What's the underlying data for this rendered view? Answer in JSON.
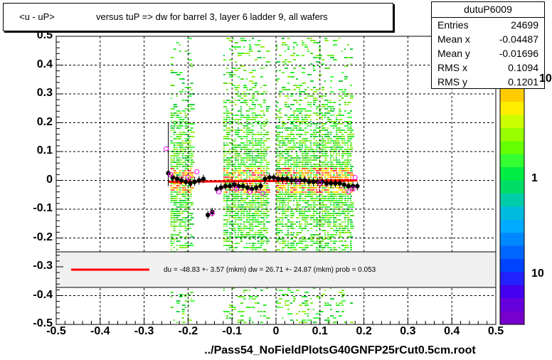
{
  "title": {
    "part1": "<u - uP>",
    "part2": "versus  tuP =>  dw for barrel 3, layer 6 ladder 9, all wafers"
  },
  "stats": {
    "name": "dutuP6009",
    "rows": [
      {
        "key": "Entries",
        "value": "24699"
      },
      {
        "key": "Mean x",
        "value": "-0.04487"
      },
      {
        "key": "Mean y",
        "value": "-0.01696"
      },
      {
        "key": "RMS x",
        "value": "0.1094"
      },
      {
        "key": "RMS y",
        "value": "0.1201"
      }
    ]
  },
  "fit_legend": "du =  -48.83 +-  3.57 (mkm) dw =   26.71 +- 24.87 (mkm) prob = 0.053",
  "file_label": "../Pass54_NoFieldPlotsG40GNFP25rCut0.5cm.root",
  "colors": {
    "fit_line": "#ff0000",
    "profile_points": "#000000",
    "open_markers": "#ff00ff",
    "legend_fill": "#f0f0f0"
  },
  "chart_data": {
    "type": "heatmap",
    "xlim": [
      -0.5,
      0.5
    ],
    "ylim": [
      -0.5,
      0.5
    ],
    "x_ticks": [
      "-0.5",
      "-0.4",
      "-0.3",
      "-0.2",
      "-0.1",
      "0",
      "0.1",
      "0.2",
      "0.3",
      "0.4",
      "0.5"
    ],
    "y_ticks": [
      "0.5",
      "0.4",
      "0.3",
      "0.2",
      "0.1",
      "0",
      "-0.1",
      "-0.2",
      "-0.3",
      "-0.4",
      "-0.5"
    ],
    "z_labels": [
      "10",
      "1",
      "10"
    ],
    "grid": true,
    "density_bands_x": [
      [
        -0.24,
        -0.19
      ],
      [
        -0.12,
        -0.02
      ],
      [
        0.0,
        0.17
      ]
    ],
    "profile": {
      "x": [
        -0.245,
        -0.235,
        -0.225,
        -0.215,
        -0.205,
        -0.195,
        -0.185,
        -0.175,
        -0.165,
        -0.155,
        -0.145,
        -0.135,
        -0.125,
        -0.115,
        -0.105,
        -0.095,
        -0.085,
        -0.075,
        -0.065,
        -0.055,
        -0.045,
        -0.035,
        -0.025,
        -0.015,
        -0.005,
        0.005,
        0.015,
        0.025,
        0.035,
        0.045,
        0.055,
        0.065,
        0.075,
        0.085,
        0.095,
        0.105,
        0.115,
        0.125,
        0.135,
        0.145,
        0.155,
        0.165,
        0.175,
        0.185
      ],
      "y": [
        0.025,
        0.01,
        0.005,
        0.0,
        -0.005,
        -0.01,
        -0.005,
        0.0,
        0.005,
        -0.12,
        -0.11,
        -0.03,
        -0.025,
        -0.02,
        -0.02,
        -0.015,
        -0.02,
        -0.02,
        -0.025,
        -0.03,
        -0.025,
        -0.02,
        0.005,
        0.01,
        0.01,
        0.005,
        0.005,
        0.005,
        0.0,
        0.0,
        0.0,
        0.0,
        -0.005,
        -0.005,
        -0.005,
        -0.005,
        -0.01,
        -0.01,
        -0.01,
        -0.01,
        -0.015,
        -0.02,
        -0.02,
        -0.02
      ]
    },
    "open_markers": {
      "x": [
        -0.25,
        -0.24,
        -0.2,
        -0.18,
        -0.145,
        -0.13,
        -0.09,
        -0.06,
        -0.03,
        0.05,
        0.1,
        0.165,
        0.175,
        0.18
      ],
      "y": [
        0.11,
        0.02,
        0.01,
        0.03,
        -0.115,
        -0.04,
        -0.03,
        -0.04,
        -0.045,
        -0.005,
        -0.01,
        -0.04,
        -0.03,
        0.01
      ]
    },
    "fit_line": {
      "x": [
        -0.245,
        0.185
      ],
      "y": [
        -0.005,
        0.0
      ]
    }
  }
}
